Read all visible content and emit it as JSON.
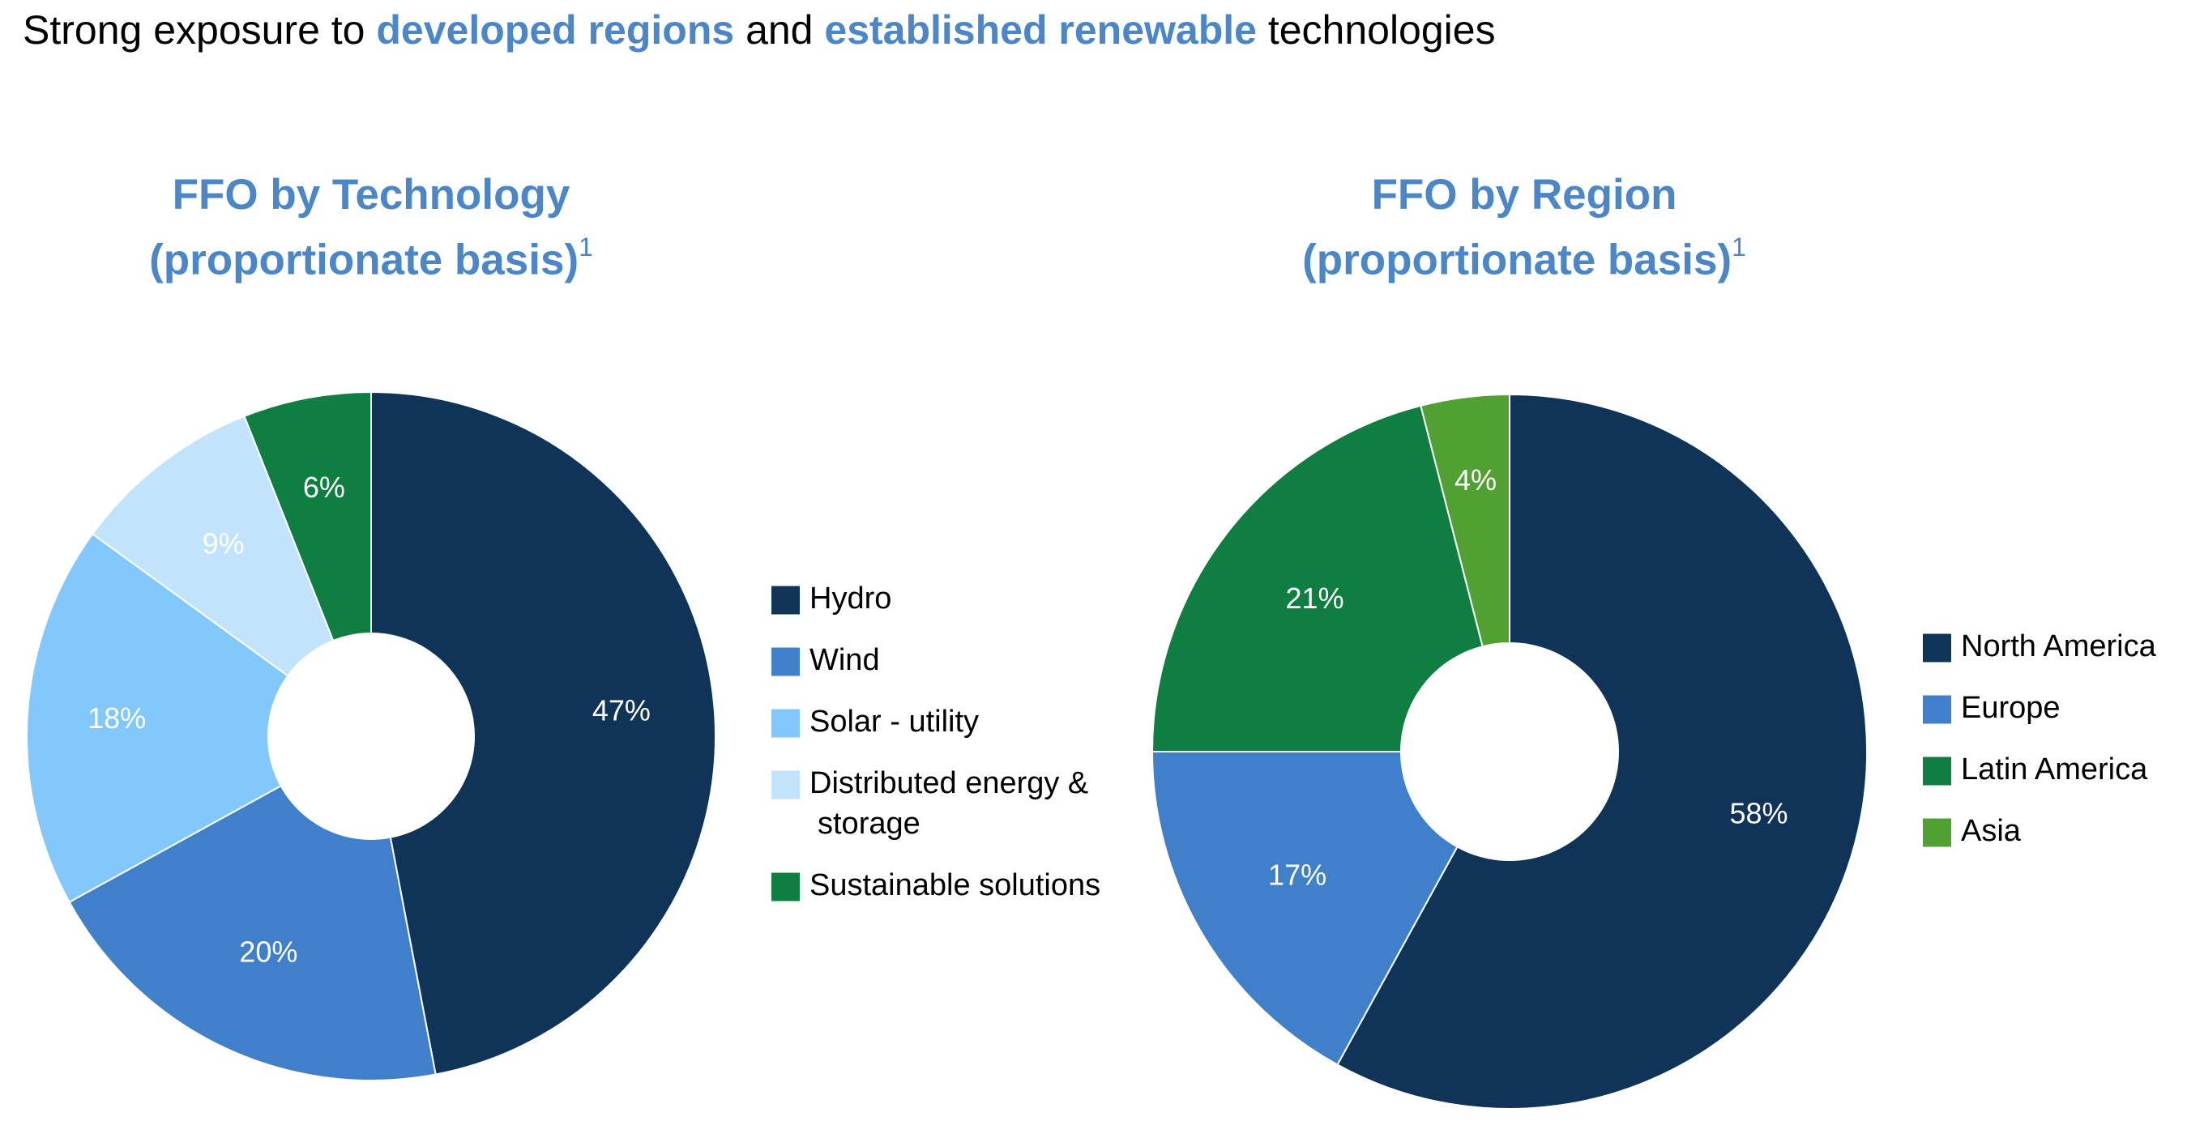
{
  "headline": {
    "part1": "Strong exposure to ",
    "highlight1": "developed regions",
    "part2": " and ",
    "highlight2": "established renewable",
    "part3": " technologies"
  },
  "colors": {
    "accent": "#4a86c8",
    "navy": "#0f3457",
    "blue": "#407fca",
    "light_blue": "#83c8fc",
    "pale_blue": "#c2e3fc",
    "green": "#0f7e41",
    "light_green": "#51a032"
  },
  "chart_data": [
    {
      "type": "pie",
      "title_line1": "FFO by Technology",
      "title_line2": "(proportionate basis)",
      "title_footnote": "1",
      "categories": [
        "Hydro",
        "Wind",
        "Solar - utility",
        "Distributed energy &",
        "Sustainable solutions"
      ],
      "legend_continuation": [
        "",
        "",
        "",
        "storage",
        ""
      ],
      "values": [
        47,
        20,
        18,
        9,
        6
      ],
      "labels": [
        "47%",
        "20%",
        "18%",
        "9%",
        "6%"
      ],
      "colors": [
        "#0f3457",
        "#407fca",
        "#83c8fc",
        "#c2e3fc",
        "#0f7e41"
      ],
      "donut": true,
      "start_angle_deg": 0,
      "direction": "clockwise",
      "legend_position": "right"
    },
    {
      "type": "pie",
      "title_line1": "FFO by Region",
      "title_line2": "(proportionate basis)",
      "title_footnote": "1",
      "categories": [
        "North  America",
        "Europe",
        "Latin America",
        "Asia"
      ],
      "legend_continuation": [
        "",
        "",
        "",
        ""
      ],
      "values": [
        58,
        17,
        21,
        4
      ],
      "labels": [
        "58%",
        "17%",
        "21%",
        "4%"
      ],
      "colors": [
        "#0f3457",
        "#407fca",
        "#0f7e41",
        "#51a032"
      ],
      "donut": true,
      "start_angle_deg": 0,
      "direction": "clockwise",
      "legend_position": "right"
    }
  ]
}
